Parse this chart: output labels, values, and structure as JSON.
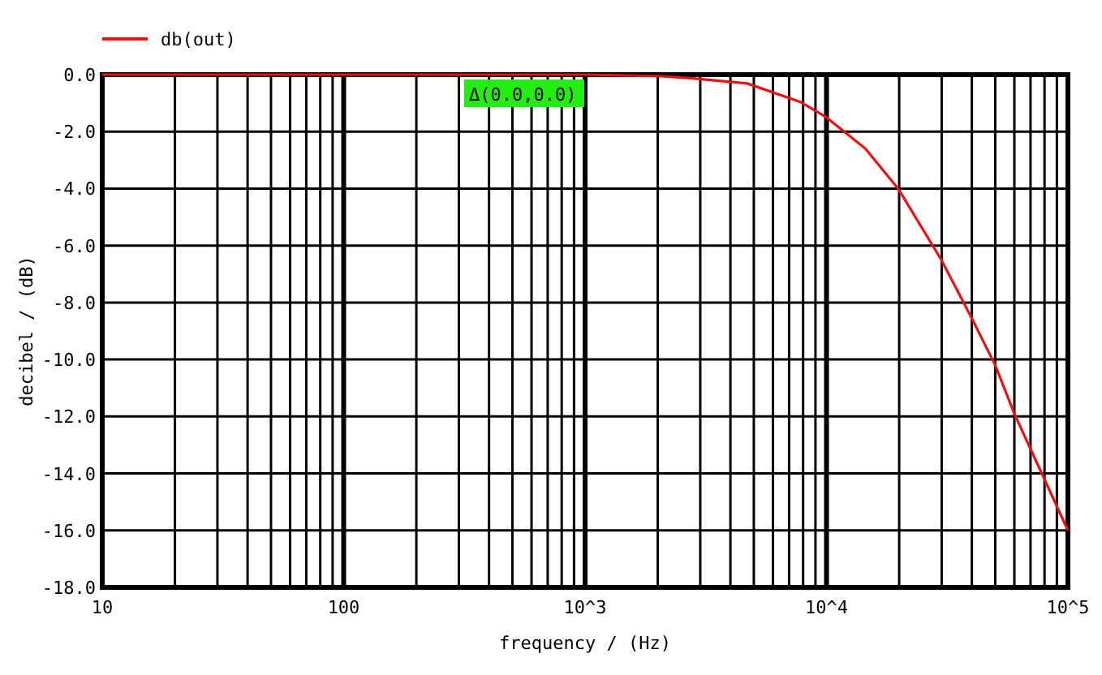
{
  "chart_data": {
    "type": "line",
    "xlabel": "frequency / (Hz)",
    "ylabel": "decibel / (dB)",
    "annotations": [
      "Δ(0.0,0.0)"
    ],
    "log": "x",
    "grid": true,
    "legend": "top left",
    "xlim": [
      10,
      100000
    ],
    "ylim": [
      -18,
      0
    ],
    "xticks": [
      10,
      {
        "value": 20,
        "label": null
      },
      {
        "value": 30,
        "label": null
      },
      {
        "value": 40,
        "label": null
      },
      {
        "value": 50,
        "label": null
      },
      {
        "value": 60,
        "label": null
      },
      {
        "value": 70,
        "label": null
      },
      {
        "value": 80,
        "label": null
      },
      {
        "value": 90,
        "label": null
      },
      100,
      {
        "value": 200,
        "label": null
      },
      {
        "value": 300,
        "label": null
      },
      {
        "value": 400,
        "label": null
      },
      {
        "value": 500,
        "label": null
      },
      {
        "value": 600,
        "label": null
      },
      {
        "value": 700,
        "label": null
      },
      {
        "value": 800,
        "label": null
      },
      {
        "value": 900,
        "label": null
      },
      {
        "value": 1000,
        "label": "10^3"
      },
      {
        "value": 2000,
        "label": null
      },
      {
        "value": 3000,
        "label": null
      },
      {
        "value": 4000,
        "label": null
      },
      {
        "value": 5000,
        "label": null
      },
      {
        "value": 6000,
        "label": null
      },
      {
        "value": 7000,
        "label": null
      },
      {
        "value": 8000,
        "label": null
      },
      {
        "value": 9000,
        "label": null
      },
      {
        "value": 10000,
        "label": "10^4"
      },
      {
        "value": 20000,
        "label": null
      },
      {
        "value": 30000,
        "label": null
      },
      {
        "value": 40000,
        "label": null
      },
      {
        "value": 50000,
        "label": null
      },
      {
        "value": 60000,
        "label": null
      },
      {
        "value": 70000,
        "label": null
      },
      {
        "value": 80000,
        "label": null
      },
      {
        "value": 90000,
        "label": null
      },
      {
        "value": 100000,
        "label": "10^5"
      }
    ],
    "yticks": [
      {
        "value": 0,
        "label": "0.0"
      },
      {
        "value": -2,
        "label": "-2.0"
      },
      {
        "value": -4,
        "label": "-4.0"
      },
      {
        "value": -6,
        "label": "-6.0"
      },
      {
        "value": -8,
        "label": "-8.0"
      },
      {
        "value": -10,
        "label": "-10.0"
      },
      {
        "value": -12,
        "label": "-12.0"
      },
      {
        "value": -14,
        "label": "-14.0"
      },
      {
        "value": -16,
        "label": "-16.0"
      },
      {
        "value": -18,
        "label": "-18.0"
      }
    ],
    "series": [
      {
        "name": "db(out)",
        "color": "#ee1111",
        "x": [
          10,
          100,
          1000,
          2000,
          2800,
          4700,
          7800,
          10000,
          14500,
          19800,
          29900,
          39700,
          50000,
          60000,
          100000
        ],
        "values": [
          0,
          0,
          0,
          -0.05,
          -0.13,
          -0.31,
          -0.96,
          -1.5,
          -2.6,
          -4.0,
          -6.5,
          -8.5,
          -10.2,
          -11.9,
          -16
        ]
      }
    ]
  }
}
